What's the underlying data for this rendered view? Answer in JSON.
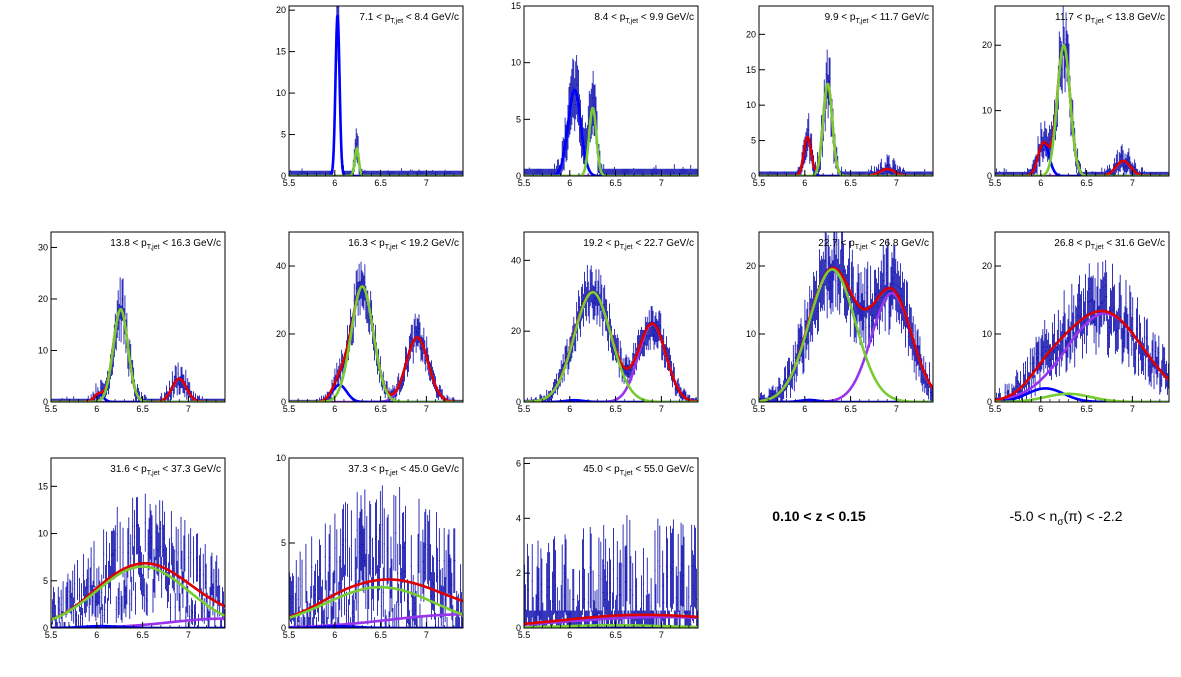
{
  "labels": {
    "z_range": "0.10 < z < 0.15",
    "nsigma_prefix": "-5.0 < n",
    "nsigma_sub": "σ",
    "nsigma_suffix": "(π) < -2.2"
  },
  "pt_label": {
    "prefix": "p",
    "sub": "T,jet",
    "unit": "GeV/c"
  },
  "colors": {
    "frame": "#000000",
    "data": "#0000aa",
    "total": "#dd0000",
    "pion": "#0000ff",
    "kaon": "#77cc33",
    "proton": "#9933ee"
  },
  "chart_data": [
    {
      "type": "line",
      "pt_range": [
        "7.1",
        "8.4"
      ],
      "xlim": [
        5.5,
        7.4
      ],
      "ylim": [
        0,
        20.5
      ],
      "xticks": [
        "5.5",
        "6",
        "6.5",
        "7"
      ],
      "yticks": [
        0,
        5,
        10,
        15,
        20
      ],
      "peaks": {
        "pion": {
          "amp": 19.5,
          "mu": 6.03,
          "sigma": 0.022
        },
        "kaon": {
          "amp": 3.3,
          "mu": 6.24,
          "sigma": 0.022
        },
        "proton": {
          "amp": 0.0,
          "mu": 6.9,
          "sigma": 0.1
        }
      },
      "noise": 0.08,
      "draw_total": false
    },
    {
      "type": "line",
      "pt_range": [
        "8.4",
        "9.9"
      ],
      "xlim": [
        5.5,
        7.4
      ],
      "ylim": [
        0,
        15
      ],
      "xticks": [
        "5.5",
        "6",
        "6.5",
        "7"
      ],
      "yticks": [
        0,
        5,
        10,
        15
      ],
      "peaks": {
        "pion": {
          "amp": 0.1,
          "mu": 6.03,
          "sigma": 0.03
        },
        "kaon": {
          "amp": 6.0,
          "mu": 6.25,
          "sigma": 0.04
        },
        "proton": {
          "amp": 0.0,
          "mu": 6.9,
          "sigma": 0.1
        }
      },
      "noise": 0.1,
      "extra_pion": {
        "amp": 7.5,
        "mu": 6.05,
        "sigma": 0.07
      },
      "draw_total": false
    },
    {
      "type": "line",
      "pt_range": [
        "9.9",
        "11.7"
      ],
      "xlim": [
        5.5,
        7.4
      ],
      "ylim": [
        0,
        24
      ],
      "xticks": [
        "5.5",
        "6",
        "6.5",
        "7"
      ],
      "yticks": [
        0,
        5,
        10,
        15,
        20
      ],
      "peaks": {
        "pion": {
          "amp": 5.5,
          "mu": 6.03,
          "sigma": 0.04
        },
        "kaon": {
          "amp": 13.0,
          "mu": 6.25,
          "sigma": 0.05
        },
        "proton": {
          "amp": 1.0,
          "mu": 6.9,
          "sigma": 0.08
        }
      },
      "noise": 0.15,
      "draw_total": true
    },
    {
      "type": "line",
      "pt_range": [
        "11.7",
        "13.8"
      ],
      "xlim": [
        5.5,
        7.4
      ],
      "ylim": [
        0,
        26
      ],
      "xticks": [
        "5.5",
        "6",
        "6.5",
        "7"
      ],
      "yticks": [
        0,
        10,
        20
      ],
      "peaks": {
        "pion": {
          "amp": 5.0,
          "mu": 6.03,
          "sigma": 0.06
        },
        "kaon": {
          "amp": 20.0,
          "mu": 6.25,
          "sigma": 0.07
        },
        "proton": {
          "amp": 2.3,
          "mu": 6.9,
          "sigma": 0.08
        }
      },
      "noise": 0.15,
      "draw_total": true
    },
    {
      "type": "line",
      "pt_range": [
        "13.8",
        "16.3"
      ],
      "xlim": [
        5.5,
        7.4
      ],
      "ylim": [
        0,
        33
      ],
      "xticks": [
        "5.5",
        "6",
        "6.5",
        "7"
      ],
      "yticks": [
        0,
        10,
        20,
        30
      ],
      "peaks": {
        "pion": {
          "amp": 1.5,
          "mu": 6.02,
          "sigma": 0.05
        },
        "kaon": {
          "amp": 18.0,
          "mu": 6.26,
          "sigma": 0.08
        },
        "proton": {
          "amp": 4.5,
          "mu": 6.9,
          "sigma": 0.08
        }
      },
      "noise": 0.15,
      "draw_total": true
    },
    {
      "type": "line",
      "pt_range": [
        "16.3",
        "19.2"
      ],
      "xlim": [
        5.5,
        7.4
      ],
      "ylim": [
        0,
        50
      ],
      "xticks": [
        "5.5",
        "6",
        "6.5",
        "7"
      ],
      "yticks": [
        0,
        20,
        40
      ],
      "peaks": {
        "pion": {
          "amp": 5.0,
          "mu": 6.05,
          "sigma": 0.08
        },
        "kaon": {
          "amp": 34.0,
          "mu": 6.3,
          "sigma": 0.12
        },
        "proton": {
          "amp": 19.0,
          "mu": 6.9,
          "sigma": 0.12
        }
      },
      "noise": 0.15,
      "draw_total": true
    },
    {
      "type": "line",
      "pt_range": [
        "19.2",
        "22.7"
      ],
      "xlim": [
        5.5,
        7.4
      ],
      "ylim": [
        0,
        48
      ],
      "xticks": [
        "5.5",
        "6",
        "6.5",
        "7"
      ],
      "yticks": [
        0,
        20,
        40
      ],
      "peaks": {
        "pion": {
          "amp": 0.5,
          "mu": 6.05,
          "sigma": 0.1
        },
        "kaon": {
          "amp": 31.0,
          "mu": 6.25,
          "sigma": 0.2
        },
        "proton": {
          "amp": 22.0,
          "mu": 6.9,
          "sigma": 0.15
        }
      },
      "noise": 0.15,
      "draw_total": true
    },
    {
      "type": "line",
      "pt_range": [
        "22.7",
        "26.8"
      ],
      "xlim": [
        5.5,
        7.4
      ],
      "ylim": [
        0,
        25
      ],
      "xticks": [
        "5.5",
        "6",
        "6.5",
        "7"
      ],
      "yticks": [
        0,
        10,
        20
      ],
      "peaks": {
        "pion": {
          "amp": 0.3,
          "mu": 6.05,
          "sigma": 0.1
        },
        "kaon": {
          "amp": 19.5,
          "mu": 6.3,
          "sigma": 0.25
        },
        "proton": {
          "amp": 16.0,
          "mu": 6.95,
          "sigma": 0.22
        }
      },
      "noise": 0.18,
      "draw_total": true
    },
    {
      "type": "line",
      "pt_range": [
        "26.8",
        "31.6"
      ],
      "xlim": [
        5.5,
        7.4
      ],
      "ylim": [
        0,
        25
      ],
      "xticks": [
        "5.5",
        "6",
        "6.5",
        "7"
      ],
      "yticks": [
        0,
        10,
        20
      ],
      "peaks": {
        "pion": {
          "amp": 2.0,
          "mu": 6.05,
          "sigma": 0.2
        },
        "kaon": {
          "amp": 1.2,
          "mu": 6.3,
          "sigma": 0.25
        },
        "proton": {
          "amp": 13.0,
          "mu": 6.7,
          "sigma": 0.42
        }
      },
      "noise": 0.22,
      "draw_total": true
    },
    {
      "type": "line",
      "pt_range": [
        "31.6",
        "37.3"
      ],
      "xlim": [
        5.5,
        7.4
      ],
      "ylim": [
        0,
        18
      ],
      "xticks": [
        "5.5",
        "6",
        "6.5",
        "7"
      ],
      "yticks": [
        0,
        5,
        10,
        15
      ],
      "peaks": {
        "pion": {
          "amp": 0.2,
          "mu": 6.05,
          "sigma": 0.2
        },
        "kaon": {
          "amp": 6.5,
          "mu": 6.5,
          "sigma": 0.5
        },
        "proton": {
          "amp": 1.0,
          "mu": 7.4,
          "sigma": 0.6
        }
      },
      "noise": 0.35,
      "draw_total": true
    },
    {
      "type": "line",
      "pt_range": [
        "37.3",
        "45.0"
      ],
      "xlim": [
        5.5,
        7.4
      ],
      "ylim": [
        0,
        10
      ],
      "xticks": [
        "5.5",
        "6",
        "6.5",
        "7"
      ],
      "yticks": [
        0,
        5,
        10
      ],
      "peaks": {
        "pion": {
          "amp": 0.1,
          "mu": 6.05,
          "sigma": 0.2
        },
        "kaon": {
          "amp": 2.4,
          "mu": 6.5,
          "sigma": 0.6
        },
        "proton": {
          "amp": 0.8,
          "mu": 7.4,
          "sigma": 0.8
        }
      },
      "noise": 0.4,
      "draw_total": true
    },
    {
      "type": "line",
      "pt_range": [
        "45.0",
        "55.0"
      ],
      "xlim": [
        5.5,
        7.4
      ],
      "ylim": [
        0,
        6.2
      ],
      "xticks": [
        "5.5",
        "6",
        "6.5",
        "7"
      ],
      "yticks": [
        0,
        2,
        4,
        6
      ],
      "peaks": {
        "pion": {
          "amp": 0.0,
          "mu": 6.05,
          "sigma": 0.2
        },
        "kaon": {
          "amp": 0.1,
          "mu": 6.5,
          "sigma": 0.6
        },
        "proton": {
          "amp": 0.4,
          "mu": 7.0,
          "sigma": 1.0
        }
      },
      "noise": 0.5,
      "draw_total": true
    }
  ]
}
